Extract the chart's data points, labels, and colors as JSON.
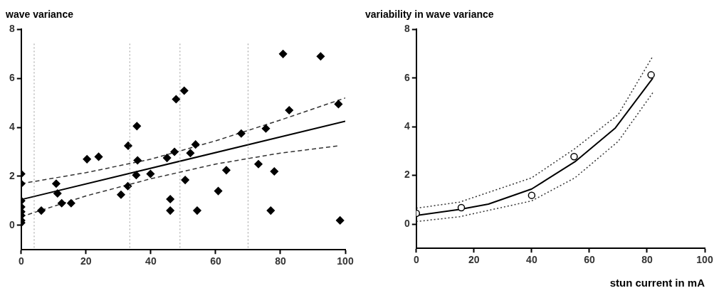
{
  "chart_data": [
    {
      "type": "scatter",
      "title": "wave variance",
      "xlim": [
        0,
        100
      ],
      "ylim": [
        -1,
        8
      ],
      "xticks": [
        0,
        20,
        40,
        60,
        80,
        100
      ],
      "yticks": [
        0,
        2,
        4,
        6,
        8
      ],
      "ref_lines": [
        {
          "axis": "x",
          "value": 4,
          "color": "#999999",
          "line_style": "dotted"
        },
        {
          "axis": "x",
          "value": 33.5,
          "color": "#999999",
          "line_style": "dotted"
        },
        {
          "axis": "x",
          "value": 49,
          "color": "#999999",
          "line_style": "dotted"
        },
        {
          "axis": "x",
          "value": 70,
          "color": "#999999",
          "line_style": "dotted"
        }
      ],
      "series": [
        {
          "type": "scatter",
          "color": "#000000",
          "marker": "diamond",
          "x": [
            0,
            0,
            0,
            0,
            0,
            0,
            0,
            0,
            6.2,
            10.8,
            11.2,
            12.5,
            15.4,
            20.3,
            23.9,
            30.8,
            32.9,
            33,
            35.7,
            35.9,
            35.5,
            39.9,
            44.4,
            45,
            46,
            46,
            47.3,
            47.8,
            50.3,
            50.6,
            52.2,
            53.8,
            54.3,
            60.8,
            63.3,
            67.9,
            73.2,
            75.5,
            77,
            78.1,
            80.8,
            82.7,
            92.4,
            97.9,
            98.4
          ],
          "values": [
            2.1,
            1.7,
            1,
            0.75,
            0.55,
            0.4,
            0.2,
            0.1,
            0.6,
            1.7,
            1.3,
            0.9,
            0.9,
            2.7,
            2.8,
            1.25,
            1.6,
            3.25,
            4.05,
            2.65,
            2.05,
            2.1,
            null,
            2.75,
            1.07,
            0.6,
            3,
            5.15,
            5.5,
            1.85,
            2.95,
            3.3,
            0.6,
            1.4,
            2.25,
            3.75,
            2.5,
            3.95,
            0.6,
            2.2,
            7,
            4.7,
            6.9,
            4.95,
            0.2
          ]
        },
        {
          "type": "line",
          "color": "#000000",
          "marker": "none",
          "line_style": "solid",
          "x": [
            0,
            100
          ],
          "values": [
            1.05,
            4.25
          ]
        },
        {
          "type": "line",
          "color": "#333333",
          "marker": "none",
          "line_style": "dashed",
          "x": [
            0,
            20,
            40,
            60,
            80,
            100
          ],
          "values": [
            1.7,
            2.15,
            2.7,
            3.45,
            4.3,
            5.2
          ]
        },
        {
          "type": "line",
          "color": "#333333",
          "marker": "none",
          "line_style": "dashed",
          "x": [
            0,
            20,
            40,
            60,
            80,
            98
          ],
          "values": [
            0.35,
            1.2,
            1.9,
            2.5,
            2.95,
            3.25
          ]
        }
      ]
    },
    {
      "type": "scatter",
      "title": "variability in wave variance",
      "xlabel": "stun current in mA",
      "xlim": [
        0,
        100
      ],
      "ylim": [
        -1,
        8
      ],
      "xticks": [
        0,
        20,
        40,
        60,
        80,
        100
      ],
      "yticks": [
        0,
        2,
        4,
        6,
        8
      ],
      "series": [
        {
          "type": "scatter",
          "color": "#000000",
          "marker": "circle",
          "x": [
            0,
            15.6,
            40,
            54.7,
            81.4
          ],
          "values": [
            0.44,
            0.67,
            1.18,
            2.77,
            6.13
          ]
        },
        {
          "type": "line",
          "color": "#000000",
          "marker": "none",
          "line_style": "solid",
          "x": [
            0,
            15,
            25,
            40,
            55,
            69,
            82
          ],
          "values": [
            0.35,
            0.6,
            0.82,
            1.44,
            2.56,
            3.95,
            6
          ]
        },
        {
          "type": "line",
          "color": "#333333",
          "marker": "none",
          "line_style": "dotted",
          "x": [
            0,
            15,
            40,
            55,
            70,
            82
          ],
          "values": [
            0.65,
            0.9,
            1.9,
            3.1,
            4.5,
            6.9
          ]
        },
        {
          "type": "line",
          "color": "#333333",
          "marker": "none",
          "line_style": "dotted",
          "x": [
            0,
            15,
            40,
            55,
            70,
            82
          ],
          "values": [
            0.1,
            0.3,
            0.95,
            1.9,
            3.4,
            5.4
          ]
        }
      ]
    }
  ]
}
